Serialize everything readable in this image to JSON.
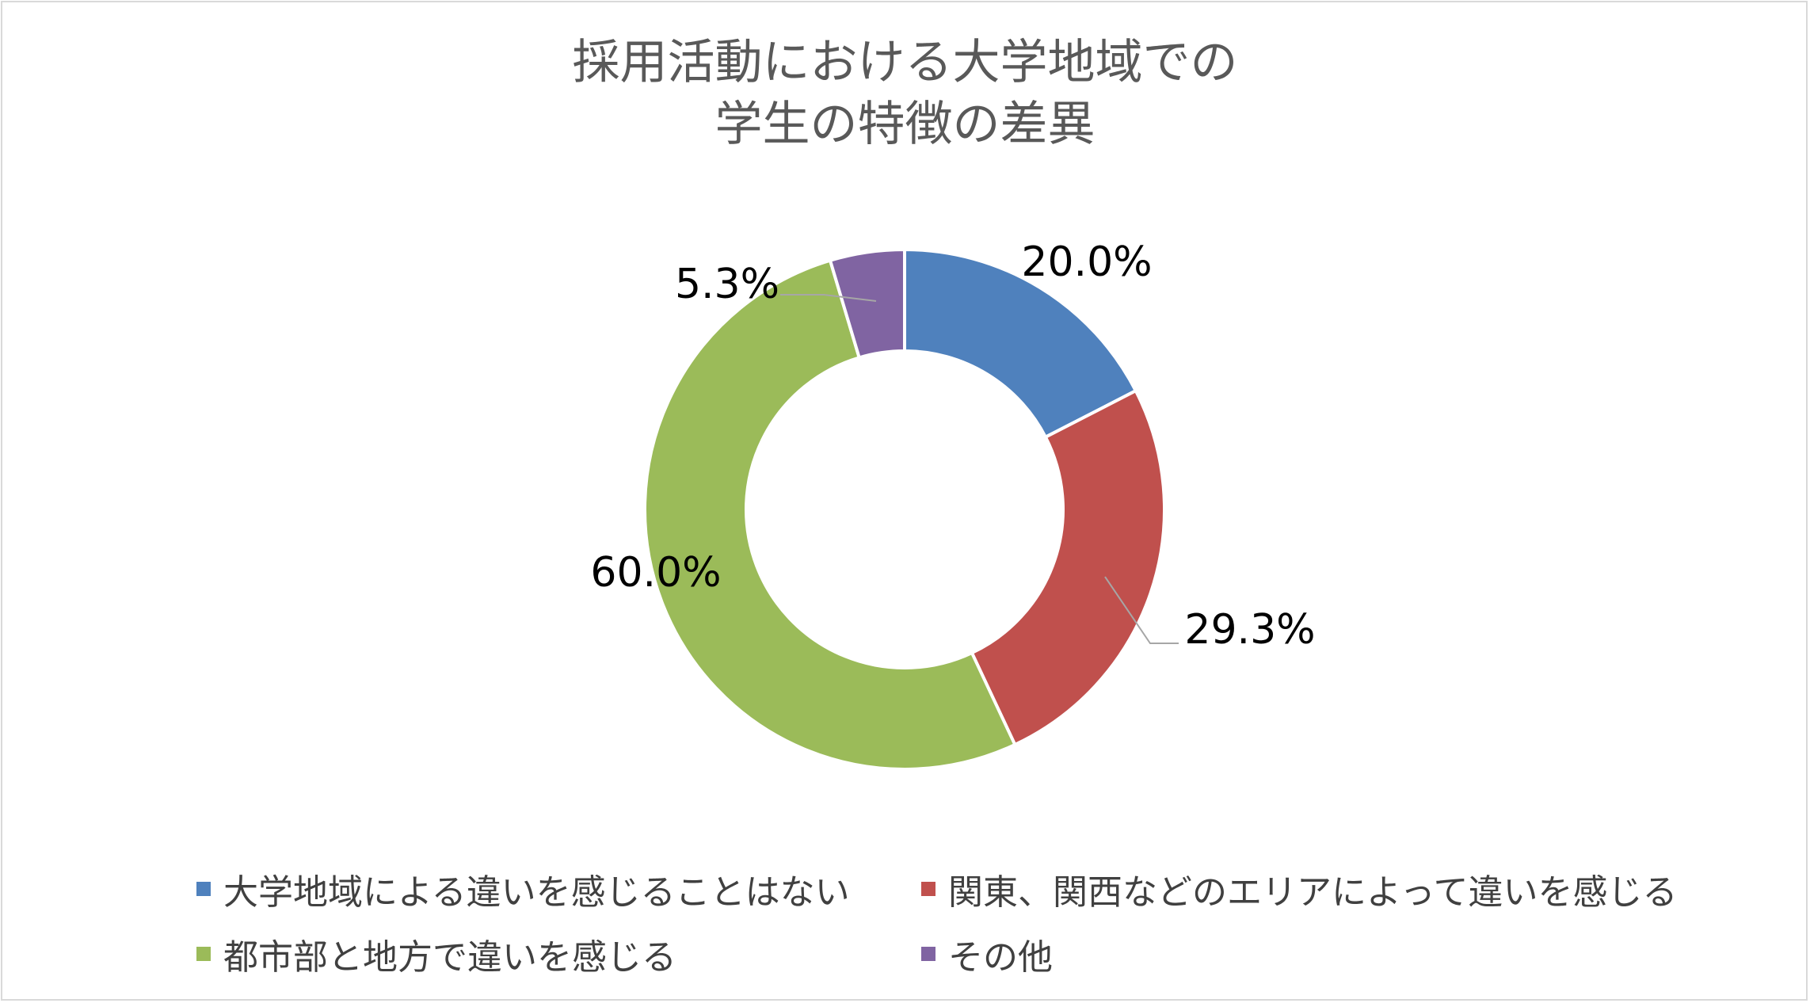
{
  "chart_data": {
    "type": "pie",
    "style": "donut",
    "title": [
      "採用活動における大学地域での",
      "学生の特徴の差異"
    ],
    "series": [
      {
        "name": "大学地域による違いを感じることはない",
        "value": 20.0,
        "label": "20.0%",
        "color": "#4f81bd"
      },
      {
        "name": "関東、関西などのエリアによって違いを感じる",
        "value": 29.3,
        "label": "29.3%",
        "color": "#c0504d"
      },
      {
        "name": "都市部と地方で違いを感じる",
        "value": 60.0,
        "label": "60.0%",
        "color": "#9bbb59"
      },
      {
        "name": "その他",
        "value": 5.3,
        "label": "5.3%",
        "color": "#8064a2"
      }
    ],
    "legend_position": "bottom"
  }
}
